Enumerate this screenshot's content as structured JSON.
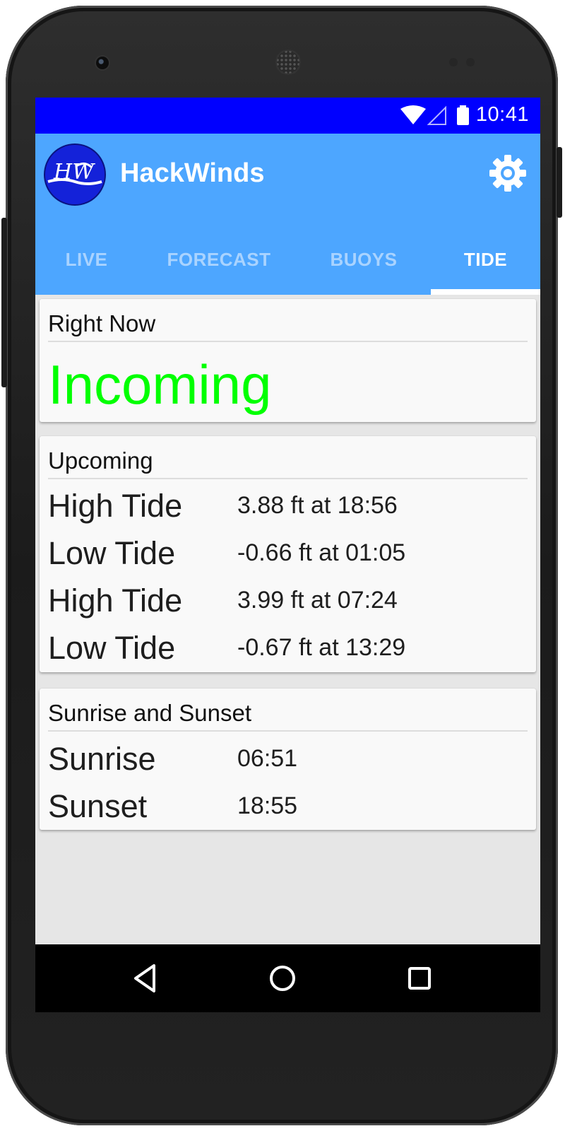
{
  "status_bar": {
    "time": "10:41",
    "icons": [
      "wifi-icon",
      "signal-icon",
      "battery-icon"
    ]
  },
  "app_bar": {
    "logo_text": "HW",
    "title": "HackWinds",
    "settings_icon": "gear-icon",
    "background_color": "#4da6ff"
  },
  "tabs": [
    {
      "label": "LIVE",
      "active": false
    },
    {
      "label": "FORECAST",
      "active": false
    },
    {
      "label": "BUOYS",
      "active": false
    },
    {
      "label": "TIDE",
      "active": true
    }
  ],
  "right_now": {
    "header": "Right Now",
    "value": "Incoming",
    "value_color": "#00ff00"
  },
  "upcoming": {
    "header": "Upcoming",
    "rows": [
      {
        "label": "High Tide",
        "value": "3.88 ft at 18:56"
      },
      {
        "label": "Low Tide",
        "value": "-0.66 ft at 01:05"
      },
      {
        "label": "High Tide",
        "value": "3.99 ft at 07:24"
      },
      {
        "label": "Low Tide",
        "value": "-0.67 ft at 13:29"
      }
    ]
  },
  "sun": {
    "header": "Sunrise and Sunset",
    "rows": [
      {
        "label": "Sunrise",
        "value": "06:51"
      },
      {
        "label": "Sunset",
        "value": "18:55"
      }
    ]
  },
  "nav_bar": {
    "buttons": [
      "back-icon",
      "home-icon",
      "recents-icon"
    ]
  }
}
